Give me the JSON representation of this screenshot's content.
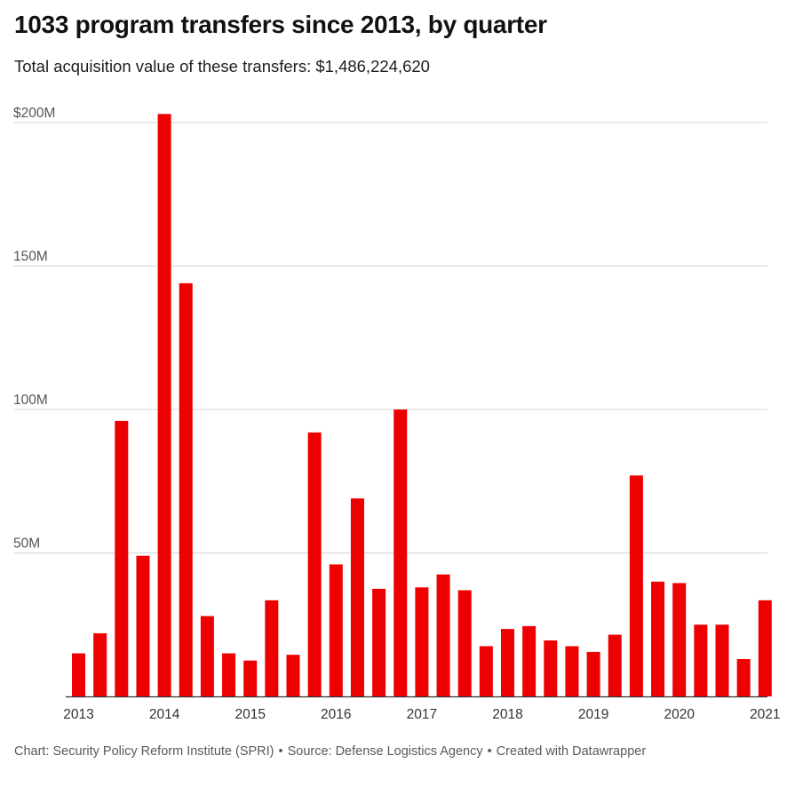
{
  "header": {
    "title": "1033 program transfers since 2013, by quarter",
    "subtitle": "Total acquisition value of these transfers: $1,486,224,620"
  },
  "footer": {
    "credit": "Chart: Security Policy Reform Institute (SPRI)",
    "source": "Source: Defense Logistics Agency",
    "tool": "Created with Datawrapper",
    "separator": "•"
  },
  "chart_data": {
    "type": "bar",
    "title": "1033 program transfers since 2013, by quarter",
    "subtitle": "Total acquisition value of these transfers: $1,486,224,620",
    "xlabel": "",
    "ylabel": "",
    "ylim": [
      0,
      200000000
    ],
    "grid": true,
    "legend": "none",
    "bar_color": "#ee0000",
    "y_ticks": [
      {
        "value": 200000000,
        "label": "$200M"
      },
      {
        "value": 150000000,
        "label": "150M"
      },
      {
        "value": 100000000,
        "label": "100M"
      },
      {
        "value": 50000000,
        "label": "50M"
      }
    ],
    "x_tick_labels": [
      "2013",
      "2014",
      "2015",
      "2016",
      "2017",
      "2018",
      "2019",
      "2020",
      "2021"
    ],
    "categories": [
      "2013 Q1",
      "2013 Q2",
      "2013 Q3",
      "2013 Q4",
      "2014 Q1",
      "2014 Q2",
      "2014 Q3",
      "2014 Q4",
      "2015 Q1",
      "2015 Q2",
      "2015 Q3",
      "2015 Q4",
      "2016 Q1",
      "2016 Q2",
      "2016 Q3",
      "2016 Q4",
      "2017 Q1",
      "2017 Q2",
      "2017 Q3",
      "2017 Q4",
      "2018 Q1",
      "2018 Q2",
      "2018 Q3",
      "2018 Q4",
      "2019 Q1",
      "2019 Q2",
      "2019 Q3",
      "2019 Q4",
      "2020 Q1",
      "2020 Q2",
      "2020 Q3",
      "2020 Q4",
      "2021 Q1"
    ],
    "values": [
      15000000,
      22000000,
      96000000,
      49000000,
      203000000,
      144000000,
      28000000,
      15000000,
      12500000,
      33500000,
      14500000,
      92000000,
      46000000,
      69000000,
      37500000,
      100000000,
      38000000,
      42500000,
      37000000,
      17500000,
      23500000,
      24500000,
      19500000,
      17500000,
      15500000,
      21500000,
      77000000,
      40000000,
      39500000,
      25000000,
      25000000,
      13000000,
      33500000
    ]
  }
}
